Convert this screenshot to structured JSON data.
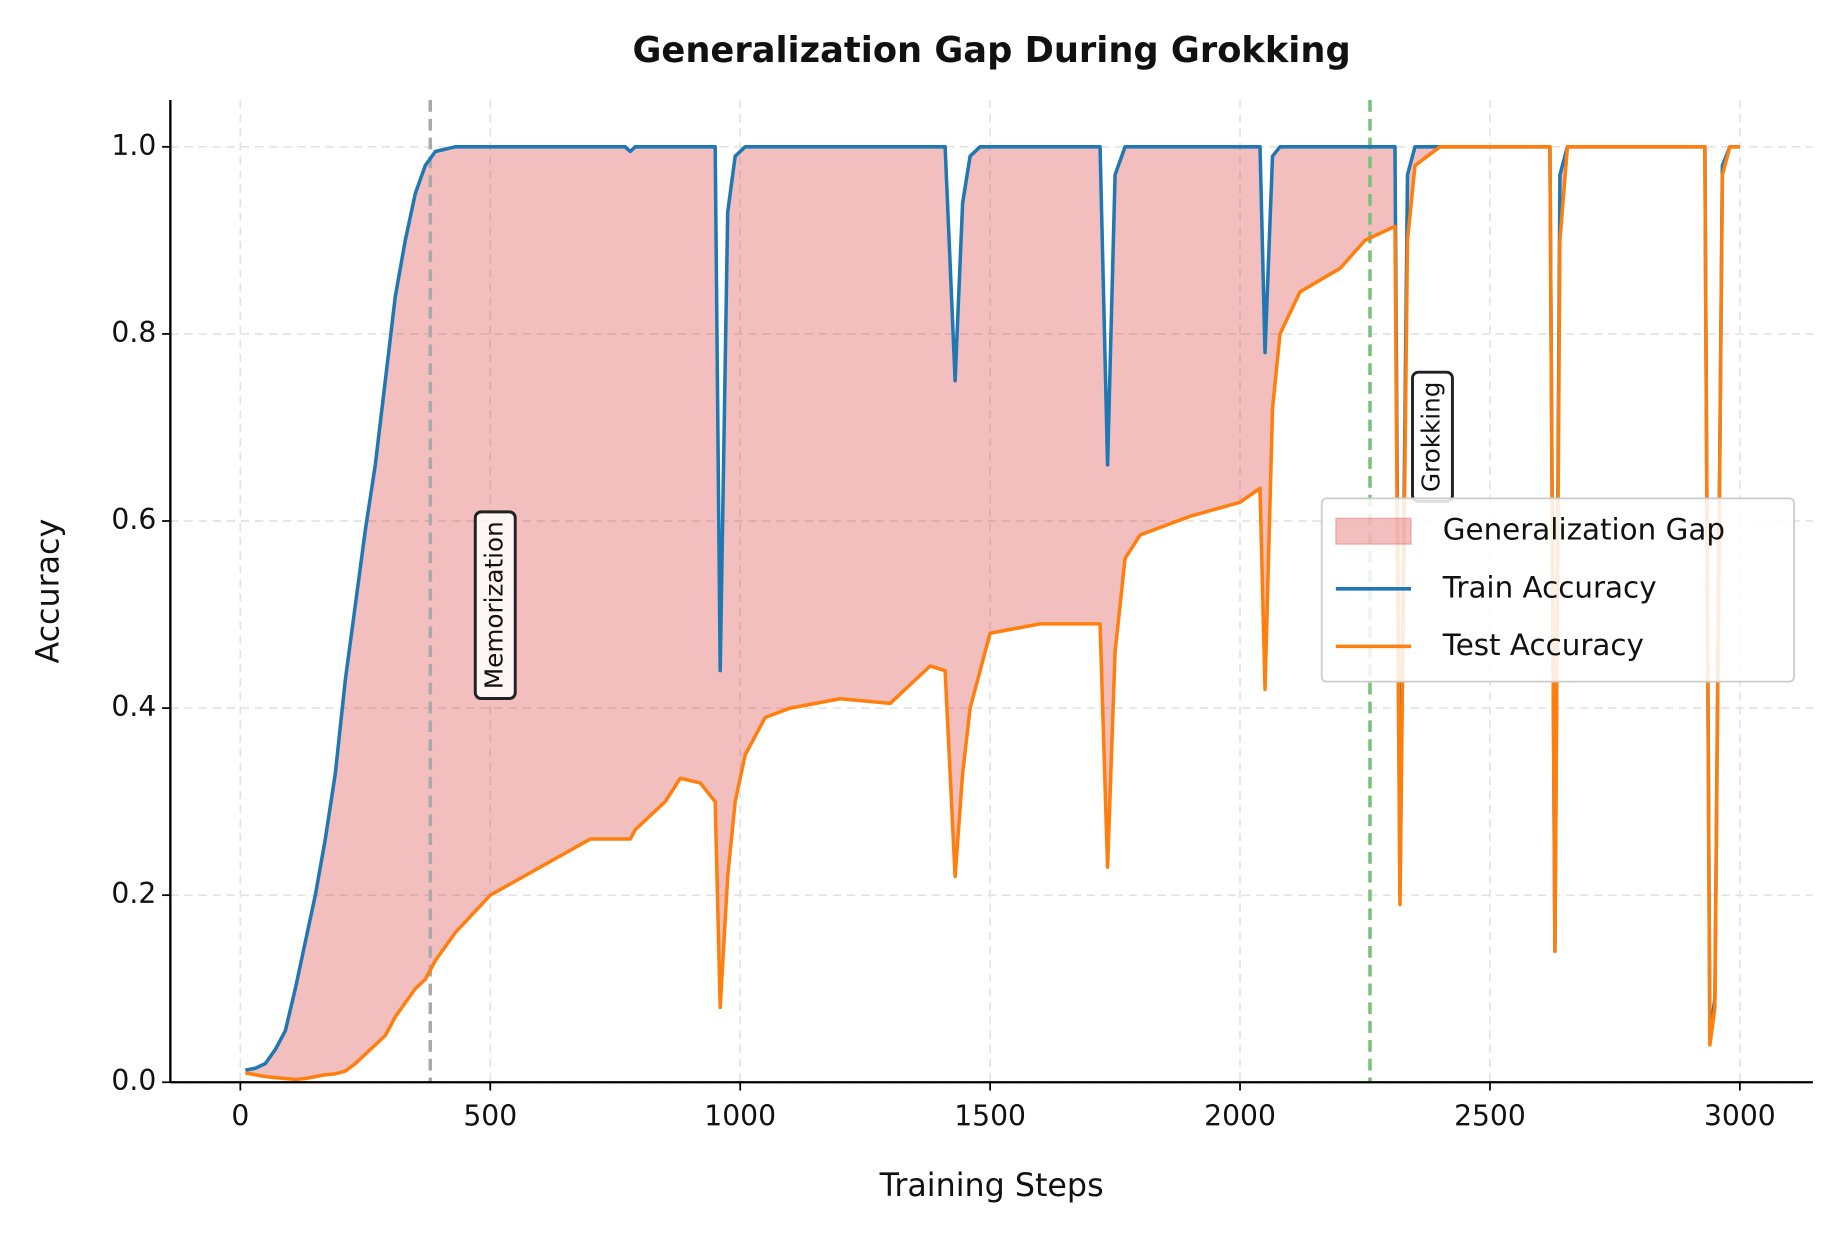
{
  "chart_data": {
    "type": "line",
    "title": "Generalization Gap During Grokking",
    "x_label": "Training Steps",
    "y_label": "Accuracy",
    "x": [
      10,
      30,
      50,
      70,
      90,
      110,
      130,
      150,
      170,
      190,
      210,
      230,
      250,
      270,
      290,
      310,
      330,
      350,
      370,
      390,
      430,
      500,
      600,
      700,
      770,
      780,
      790,
      850,
      880,
      920,
      950,
      960,
      975,
      990,
      1010,
      1050,
      1100,
      1200,
      1300,
      1350,
      1380,
      1410,
      1430,
      1445,
      1460,
      1480,
      1500,
      1600,
      1720,
      1735,
      1750,
      1770,
      1800,
      1900,
      2000,
      2040,
      2050,
      2065,
      2080,
      2120,
      2200,
      2250,
      2310,
      2320,
      2335,
      2350,
      2400,
      2620,
      2630,
      2640,
      2655,
      2930,
      2940,
      2950,
      2965,
      2980,
      3000
    ],
    "series": [
      {
        "name": "Train Accuracy",
        "color": "#1f77b4",
        "values": [
          0.013,
          0.015,
          0.02,
          0.035,
          0.055,
          0.1,
          0.15,
          0.2,
          0.26,
          0.33,
          0.43,
          0.51,
          0.59,
          0.66,
          0.75,
          0.84,
          0.9,
          0.95,
          0.98,
          0.995,
          1,
          1,
          1,
          1,
          1,
          0.995,
          1,
          1,
          1,
          1,
          1,
          0.44,
          0.93,
          0.99,
          1,
          1,
          1,
          1,
          1,
          1,
          1,
          1,
          0.75,
          0.94,
          0.99,
          1,
          1,
          1,
          1,
          0.66,
          0.97,
          1,
          1,
          1,
          1,
          1,
          0.78,
          0.99,
          1,
          1,
          1,
          1,
          1,
          0.2,
          0.97,
          1,
          1,
          1,
          0.14,
          0.97,
          1,
          1,
          0.05,
          0.09,
          0.98,
          1,
          1
        ]
      },
      {
        "name": "Test Accuracy",
        "color": "#ff7f0e",
        "values": [
          0.01,
          0.008,
          0.006,
          0.005,
          0.004,
          0.003,
          0.004,
          0.006,
          0.008,
          0.009,
          0.012,
          0.02,
          0.03,
          0.04,
          0.05,
          0.07,
          0.085,
          0.1,
          0.11,
          0.13,
          0.16,
          0.2,
          0.23,
          0.26,
          0.26,
          0.26,
          0.27,
          0.3,
          0.325,
          0.32,
          0.3,
          0.08,
          0.22,
          0.3,
          0.35,
          0.39,
          0.4,
          0.41,
          0.405,
          0.43,
          0.445,
          0.44,
          0.22,
          0.33,
          0.4,
          0.44,
          0.48,
          0.49,
          0.49,
          0.23,
          0.46,
          0.56,
          0.585,
          0.605,
          0.62,
          0.635,
          0.42,
          0.72,
          0.8,
          0.845,
          0.87,
          0.9,
          0.915,
          0.19,
          0.9,
          0.98,
          1,
          1,
          0.14,
          0.9,
          1,
          1,
          0.04,
          0.08,
          0.97,
          1,
          1
        ]
      }
    ],
    "gap_fill": {
      "name": "Generalization Gap",
      "color": "#d62728"
    },
    "vlines": [
      {
        "x": 380,
        "color": "#aaaaaa"
      },
      {
        "x": 2260,
        "color": "#77c27a"
      }
    ],
    "annotations": [
      {
        "text": "Memorization",
        "x": 510,
        "y": 0.51
      },
      {
        "text": "Grokking",
        "x": 2385,
        "y": 0.69
      }
    ],
    "xlim": [
      -140,
      3146
    ],
    "ylim": [
      0,
      1.05
    ],
    "xticks": [
      0,
      500,
      1000,
      1500,
      2000,
      2500,
      3000
    ],
    "yticks": [
      {
        "value": 0,
        "label": "0.0"
      },
      0.2,
      0.4,
      0.6,
      0.8,
      {
        "value": 1,
        "label": "1.0"
      }
    ],
    "grid": true,
    "legend": "center right"
  }
}
